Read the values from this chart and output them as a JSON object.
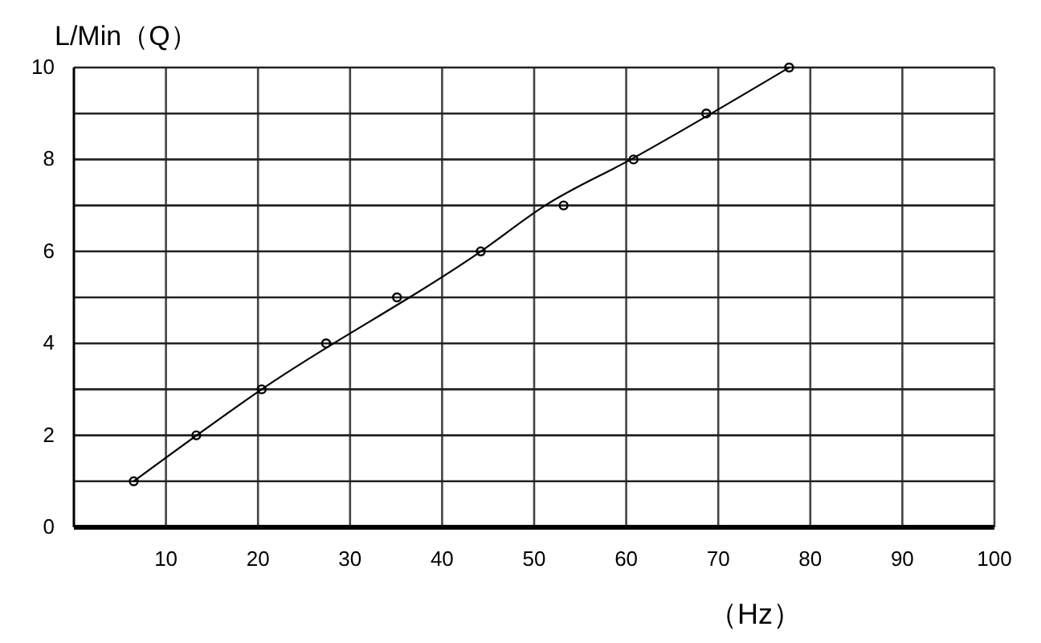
{
  "chart_data": {
    "type": "scatter",
    "xlabel": "（Hz）",
    "ylabel": "L/Min（Q）",
    "xlim": [
      0,
      100
    ],
    "ylim": [
      0,
      10
    ],
    "xticks": [
      10,
      20,
      30,
      40,
      50,
      60,
      70,
      80,
      90,
      100
    ],
    "yticks": [
      0,
      {
        "value": 1,
        "label": null
      },
      2,
      {
        "value": 3,
        "label": null
      },
      4,
      {
        "value": 5,
        "label": null
      },
      6,
      {
        "value": 7,
        "label": null
      },
      8,
      {
        "value": 9,
        "label": null
      },
      10
    ],
    "grid": true,
    "marker": "circle",
    "series": [
      {
        "color": "#000000",
        "x": [
          6.5,
          13.3,
          20.4,
          27.4,
          35.1,
          44.2,
          53.2,
          60.8,
          68.7,
          77.7
        ],
        "values": [
          1,
          2,
          3,
          4,
          5,
          6,
          7,
          8,
          9,
          10
        ]
      },
      {
        "type": "line",
        "marker": "none",
        "color": "#000000",
        "x": [
          6.5,
          20.4,
          44.2,
          51.2,
          60.5,
          77.7
        ],
        "values": [
          1,
          3,
          6,
          7,
          8,
          10
        ]
      }
    ]
  }
}
